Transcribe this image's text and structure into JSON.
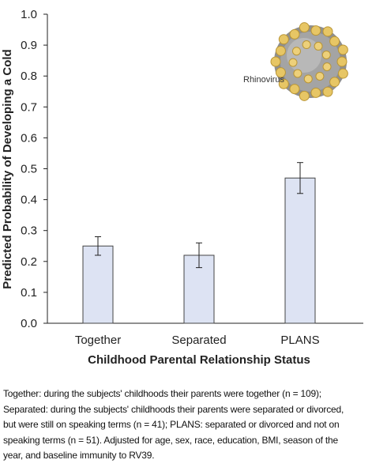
{
  "chart_data": {
    "type": "bar",
    "categories": [
      "Together",
      "Separated",
      "PLANS"
    ],
    "values": [
      0.25,
      0.22,
      0.47
    ],
    "error_low": [
      0.22,
      0.18,
      0.42
    ],
    "error_high": [
      0.28,
      0.26,
      0.52
    ],
    "xlabel": "Childhood Parental Relationship Status",
    "ylabel": "Predicted Probability of Developing a Cold",
    "ylim": [
      0,
      1.0
    ],
    "yticks": [
      "0.0",
      "0.1",
      "0.2",
      "0.3",
      "0.4",
      "0.5",
      "0.6",
      "0.7",
      "0.8",
      "0.9",
      "1.0"
    ],
    "bar_color": "#dde3f3",
    "grid": false
  },
  "image_label": "Rhinovirus",
  "caption": "Together: during the subjects' childhoods their parents were together (n = 109); Separated: during the subjects' childhoods their parents were separated or divorced, but were still on speaking terms (n = 41); PLANS: separated or divorced and not on speaking terms (n = 51). Adjusted for age, sex, race, education, BMI, season of the year, and baseline immunity to RV39."
}
